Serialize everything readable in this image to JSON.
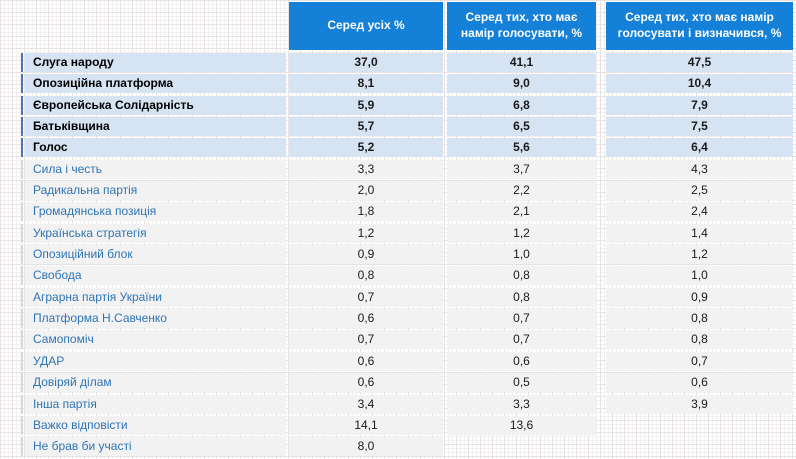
{
  "colors": {
    "header_bg": "#1480d8",
    "header_text": "#ffffff",
    "highlight_bg": "#d6e3f2",
    "row_bg": "#f2f2f2",
    "party_blue": "#2e74b5",
    "value_text": "#1a1a1a"
  },
  "table": {
    "headers": [
      "Серед усіх %",
      "Серед тих, хто має намір голосувати, %",
      "Серед тих, хто має намір голосувати і визначився, %"
    ],
    "rows": [
      {
        "label": "Слуга народу",
        "v1": "37,0",
        "v2": "41,1",
        "v3": "47,5",
        "highlight": true
      },
      {
        "label": "Опозиційна платформа",
        "v1": "8,1",
        "v2": "9,0",
        "v3": "10,4",
        "highlight": true
      },
      {
        "label": "Європейська Солідарність",
        "v1": "5,9",
        "v2": "6,8",
        "v3": "7,9",
        "highlight": true
      },
      {
        "label": "Батьківщина",
        "v1": "5,7",
        "v2": "6,5",
        "v3": "7,5",
        "highlight": true
      },
      {
        "label": "Голос",
        "v1": "5,2",
        "v2": "5,6",
        "v3": "6,4",
        "highlight": true
      },
      {
        "label": "Сила і честь",
        "v1": "3,3",
        "v2": "3,7",
        "v3": "4,3",
        "highlight": false
      },
      {
        "label": "Радикальна партія",
        "v1": "2,0",
        "v2": "2,2",
        "v3": "2,5",
        "highlight": false
      },
      {
        "label": "Громадянська позиція",
        "v1": "1,8",
        "v2": "2,1",
        "v3": "2,4",
        "highlight": false
      },
      {
        "label": "Українська стратегія",
        "v1": "1,2",
        "v2": "1,2",
        "v3": "1,4",
        "highlight": false
      },
      {
        "label": "Опозиційний блок",
        "v1": "0,9",
        "v2": "1,0",
        "v3": "1,2",
        "highlight": false
      },
      {
        "label": "Свобода",
        "v1": "0,8",
        "v2": "0,8",
        "v3": "1,0",
        "highlight": false
      },
      {
        "label": "Аграрна партія України",
        "v1": "0,7",
        "v2": "0,8",
        "v3": "0,9",
        "highlight": false
      },
      {
        "label": "Платформа Н.Савченко",
        "v1": "0,6",
        "v2": "0,7",
        "v3": "0,8",
        "highlight": false
      },
      {
        "label": "Самопоміч",
        "v1": "0,7",
        "v2": "0,7",
        "v3": "0,8",
        "highlight": false
      },
      {
        "label": "УДАР",
        "v1": "0,6",
        "v2": "0,6",
        "v3": "0,7",
        "highlight": false
      },
      {
        "label": "Довіряй ділам",
        "v1": "0,6",
        "v2": "0,5",
        "v3": "0,6",
        "highlight": false
      },
      {
        "label": "Інша партія",
        "v1": "3,4",
        "v2": "3,3",
        "v3": "3,9",
        "highlight": false
      },
      {
        "label": "Важко відповісти",
        "v1": "14,1",
        "v2": "13,6",
        "v3": null,
        "highlight": false
      },
      {
        "label": "Не брав би участі",
        "v1": "8,0",
        "v2": null,
        "v3": null,
        "highlight": false
      }
    ]
  }
}
